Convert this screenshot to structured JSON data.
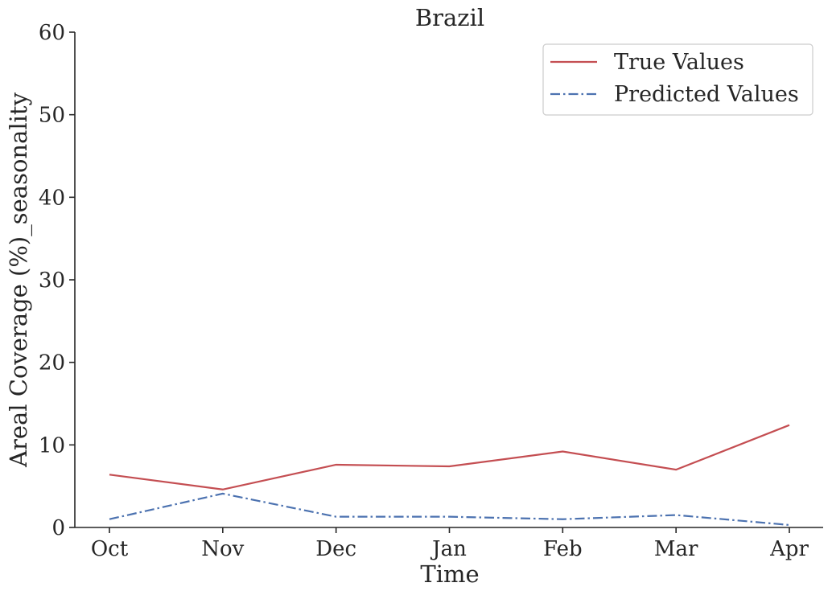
{
  "chart_data": {
    "type": "line",
    "title": "Brazil",
    "xlabel": "Time",
    "ylabel": "Areal Coverage (%)_seasonality",
    "categories": [
      "Oct",
      "Nov",
      "Dec",
      "Jan",
      "Feb",
      "Mar",
      "Apr"
    ],
    "ylim": [
      0,
      60
    ],
    "yticks": [
      0,
      10,
      20,
      30,
      40,
      50,
      60
    ],
    "grid": false,
    "legend_position": "top-right",
    "series": [
      {
        "name": "True Values",
        "values": [
          6.4,
          4.6,
          7.6,
          7.4,
          9.2,
          7.0,
          12.4
        ],
        "color": "#c44e52",
        "style": "solid"
      },
      {
        "name": "Predicted Values",
        "values": [
          1.0,
          4.1,
          1.3,
          1.3,
          1.0,
          1.5,
          0.3
        ],
        "color": "#4c72b0",
        "style": "dashdot"
      }
    ]
  }
}
